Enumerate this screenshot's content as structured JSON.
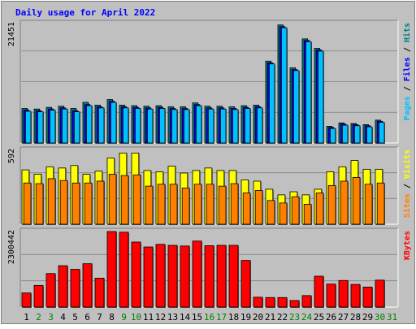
{
  "chart_data": {
    "type": "bar",
    "title": "Daily usage for April 2022",
    "categories": [
      "1",
      "2",
      "3",
      "4",
      "5",
      "6",
      "7",
      "8",
      "9",
      "10",
      "11",
      "12",
      "13",
      "14",
      "15",
      "16",
      "17",
      "18",
      "19",
      "20",
      "21",
      "22",
      "23",
      "24",
      "25",
      "26",
      "27",
      "28",
      "29",
      "30",
      "31"
    ],
    "weekend_days": [
      "2",
      "3",
      "9",
      "10",
      "16",
      "17",
      "23",
      "24",
      "30",
      "31"
    ],
    "panels": [
      {
        "id": "hits-files-pages",
        "label_parts": [
          {
            "text": "Pages",
            "color": "#00c0ff"
          },
          {
            "text": " / ",
            "color": "#000000"
          },
          {
            "text": "Files",
            "color": "#0000ff"
          },
          {
            "text": " / ",
            "color": "#000000"
          },
          {
            "text": "Hits",
            "color": "#008080"
          }
        ],
        "max_label": "21451",
        "ylim": [
          0,
          21451
        ],
        "series": [
          {
            "name": "Hits",
            "color": "#008080",
            "values": [
              6200,
              6100,
              6400,
              6600,
              6200,
              7300,
              6800,
              7800,
              6800,
              6700,
              6600,
              6700,
              6500,
              6500,
              7200,
              6600,
              6600,
              6500,
              6700,
              6800,
              14700,
              21200,
              13500,
              18700,
              17000,
              3000,
              3600,
              3500,
              3300,
              4100,
              0
            ]
          },
          {
            "name": "Files",
            "color": "#0000ff",
            "values": [
              5900,
              5800,
              6100,
              6300,
              5800,
              6900,
              6500,
              7500,
              6500,
              6400,
              6300,
              6400,
              6200,
              6200,
              6900,
              6300,
              6300,
              6200,
              6400,
              6500,
              14400,
              20900,
              13200,
              18400,
              16700,
              2800,
              3400,
              3300,
              3100,
              3900,
              0
            ]
          },
          {
            "name": "Pages",
            "color": "#00c0ff",
            "values": [
              5700,
              5600,
              5900,
              6100,
              5600,
              6700,
              6300,
              7300,
              6300,
              6200,
              6100,
              6200,
              6000,
              6000,
              6700,
              6100,
              6100,
              6000,
              6200,
              6300,
              14200,
              20700,
              13000,
              18200,
              16500,
              2600,
              3200,
              3100,
              2900,
              3700,
              0
            ]
          }
        ]
      },
      {
        "id": "visits-sites",
        "label_parts": [
          {
            "text": "Sites",
            "color": "#ff8000"
          },
          {
            "text": " / ",
            "color": "#000000"
          },
          {
            "text": "Visits",
            "color": "#ffff00"
          }
        ],
        "max_label": "592",
        "ylim": [
          0,
          592
        ],
        "series": [
          {
            "name": "Visits",
            "color": "#ffff00",
            "values": [
              435,
              400,
              460,
              450,
              470,
              400,
              425,
              530,
              570,
              570,
              430,
              420,
              465,
              410,
              430,
              450,
              430,
              430,
              355,
              345,
              280,
              235,
              260,
              235,
              280,
              420,
              460,
              510,
              440,
              440,
              0
            ]
          },
          {
            "name": "Sites",
            "color": "#ff8000",
            "values": [
              330,
              325,
              365,
              350,
              330,
              330,
              345,
              400,
              390,
              395,
              305,
              320,
              320,
              290,
              320,
              320,
              305,
              325,
              250,
              270,
              190,
              170,
              220,
              160,
              250,
              310,
              345,
              375,
              320,
              330,
              0
            ]
          }
        ]
      },
      {
        "id": "kbytes",
        "label_parts": [
          {
            "text": "KBytes",
            "color": "#ff0000"
          }
        ],
        "max_label": "2300442",
        "ylim": [
          0,
          2300442
        ],
        "series": [
          {
            "name": "KBytes",
            "color": "#ff0000",
            "values": [
              430000,
              660000,
              1020000,
              1260000,
              1150000,
              1320000,
              880000,
              2300000,
              2280000,
              1980000,
              1830000,
              1910000,
              1880000,
              1860000,
              2010000,
              1870000,
              1880000,
              1880000,
              1420000,
              300000,
              290000,
              290000,
              200000,
              350000,
              940000,
              700000,
              810000,
              690000,
              610000,
              820000,
              0
            ]
          }
        ]
      }
    ]
  }
}
